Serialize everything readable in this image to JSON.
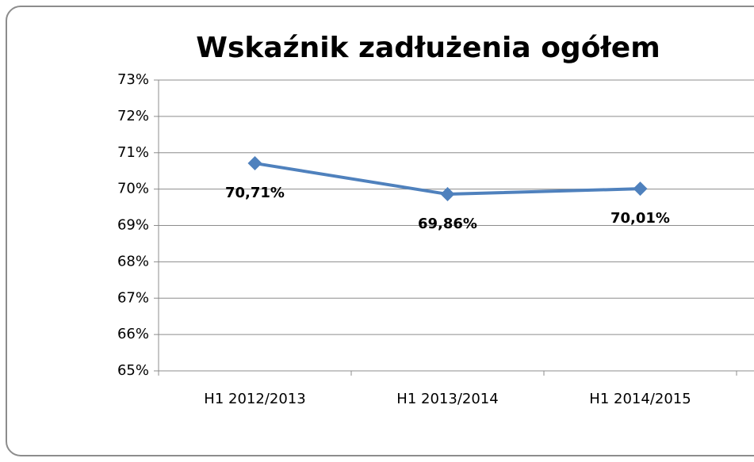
{
  "chart_data": {
    "type": "line",
    "title": "Wskaźnik zadłużenia ogółem",
    "categories": [
      "H1 2012/2013",
      "H1 2013/2014",
      "H1 2014/2015"
    ],
    "series": [
      {
        "name": "Wskaźnik zadłużenia ogółem",
        "color": "#4f81bd",
        "values": [
          70.71,
          69.86,
          70.01
        ],
        "value_labels": [
          "70,71%",
          "69,86%",
          "70,01%"
        ]
      }
    ],
    "ylim": [
      65,
      73
    ],
    "yticks": [
      {
        "value": 65,
        "label": "65%"
      },
      {
        "value": 66,
        "label": "66%"
      },
      {
        "value": 67,
        "label": "67%"
      },
      {
        "value": 68,
        "label": "68%"
      },
      {
        "value": 69,
        "label": "69%"
      },
      {
        "value": 70,
        "label": "70%"
      },
      {
        "value": 71,
        "label": "71%"
      },
      {
        "value": 72,
        "label": "72%"
      },
      {
        "value": 73,
        "label": "73%"
      }
    ],
    "grid": true
  }
}
